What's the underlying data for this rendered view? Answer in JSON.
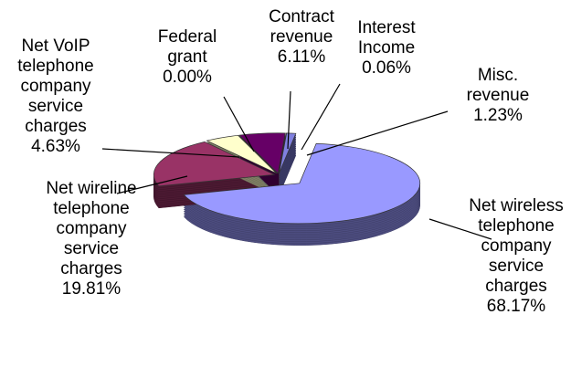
{
  "chart_data": {
    "type": "pie3d",
    "categories": [
      "Net wireless telephone company service charges",
      "Net wireline telephone company service charges",
      "Net VoIP telephone company service charges",
      "Federal grant",
      "Contract revenue",
      "Interest Income",
      "Misc. revenue"
    ],
    "values": [
      68.17,
      19.81,
      4.63,
      0,
      6.11,
      0.06,
      1.23
    ],
    "value_labels": [
      "68.17%",
      "19.81%",
      "4.63%",
      "0.00%",
      "6.11%",
      "0.06%",
      "1.23%"
    ],
    "colors": [
      "#9999ff",
      "#993366",
      "#ffffcc",
      "#ccffff",
      "#660066",
      "#ff8080",
      "#8080e0"
    ]
  }
}
